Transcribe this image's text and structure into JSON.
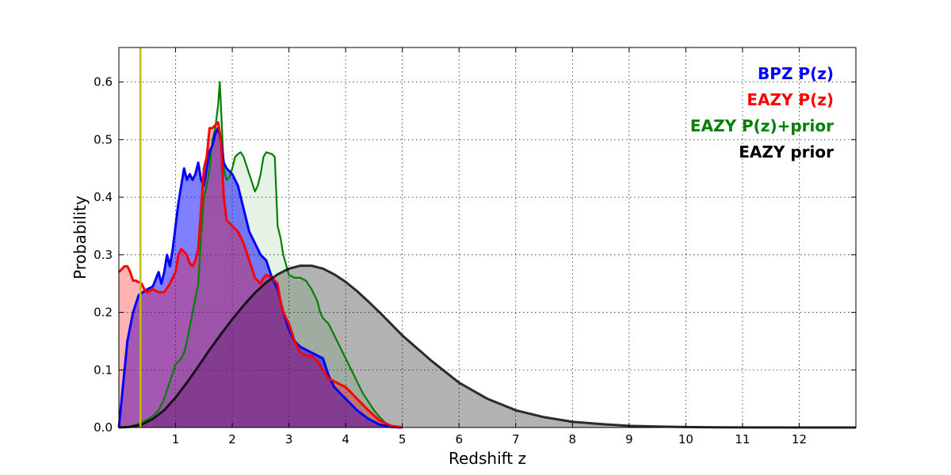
{
  "chart_data": {
    "type": "area",
    "title": "",
    "xlabel": "Redshift z",
    "ylabel": "Probability",
    "xlim": [
      0,
      13
    ],
    "ylim": [
      0,
      0.66
    ],
    "grid": true,
    "legend_position": "top-right",
    "x_ticks": [
      1,
      2,
      3,
      4,
      5,
      6,
      7,
      8,
      9,
      10,
      11,
      12
    ],
    "x_tick_labels": [
      "1",
      "2",
      "3",
      "4",
      "5",
      "6",
      "7",
      "8",
      "9",
      "10",
      "11",
      "12"
    ],
    "y_ticks": [
      0.0,
      0.1,
      0.2,
      0.3,
      0.4,
      0.5,
      0.6
    ],
    "y_tick_labels": [
      "0.0",
      "0.1",
      "0.2",
      "0.3",
      "0.4",
      "0.5",
      "0.6"
    ],
    "vline": {
      "x": 0.38,
      "color": "#bfbf00"
    },
    "series": [
      {
        "name": "BPZ P(z)",
        "color": "#0000ff",
        "fill": "#0000ff",
        "fill_opacity": 0.5,
        "line_width": 3,
        "points": [
          [
            0,
            0
          ],
          [
            0.05,
            0.05
          ],
          [
            0.15,
            0.15
          ],
          [
            0.25,
            0.2
          ],
          [
            0.35,
            0.23
          ],
          [
            0.5,
            0.24
          ],
          [
            0.6,
            0.245
          ],
          [
            0.7,
            0.27
          ],
          [
            0.75,
            0.25
          ],
          [
            0.8,
            0.27
          ],
          [
            0.85,
            0.3
          ],
          [
            0.9,
            0.28
          ],
          [
            0.95,
            0.31
          ],
          [
            1.0,
            0.35
          ],
          [
            1.05,
            0.39
          ],
          [
            1.1,
            0.42
          ],
          [
            1.15,
            0.45
          ],
          [
            1.2,
            0.43
          ],
          [
            1.25,
            0.44
          ],
          [
            1.3,
            0.43
          ],
          [
            1.35,
            0.44
          ],
          [
            1.4,
            0.46
          ],
          [
            1.45,
            0.43
          ],
          [
            1.5,
            0.42
          ],
          [
            1.55,
            0.45
          ],
          [
            1.6,
            0.48
          ],
          [
            1.65,
            0.49
          ],
          [
            1.7,
            0.51
          ],
          [
            1.75,
            0.52
          ],
          [
            1.8,
            0.5
          ],
          [
            1.85,
            0.46
          ],
          [
            1.9,
            0.45
          ],
          [
            2.0,
            0.44
          ],
          [
            2.1,
            0.42
          ],
          [
            2.2,
            0.38
          ],
          [
            2.3,
            0.34
          ],
          [
            2.4,
            0.32
          ],
          [
            2.5,
            0.3
          ],
          [
            2.6,
            0.29
          ],
          [
            2.7,
            0.26
          ],
          [
            2.8,
            0.24
          ],
          [
            2.9,
            0.2
          ],
          [
            3.0,
            0.17
          ],
          [
            3.1,
            0.15
          ],
          [
            3.2,
            0.14
          ],
          [
            3.3,
            0.135
          ],
          [
            3.4,
            0.13
          ],
          [
            3.5,
            0.125
          ],
          [
            3.6,
            0.12
          ],
          [
            3.7,
            0.09
          ],
          [
            3.8,
            0.07
          ],
          [
            4.0,
            0.05
          ],
          [
            4.2,
            0.03
          ],
          [
            4.4,
            0.015
          ],
          [
            4.6,
            0.005
          ],
          [
            4.8,
            0.001
          ],
          [
            5.0,
            0
          ]
        ]
      },
      {
        "name": "EAZY P(z)",
        "color": "#ff0000",
        "fill": "#ff0000",
        "fill_opacity": 0.3,
        "line_width": 3,
        "points": [
          [
            0,
            0.27
          ],
          [
            0.1,
            0.28
          ],
          [
            0.15,
            0.28
          ],
          [
            0.2,
            0.27
          ],
          [
            0.25,
            0.255
          ],
          [
            0.3,
            0.255
          ],
          [
            0.4,
            0.25
          ],
          [
            0.45,
            0.24
          ],
          [
            0.5,
            0.235
          ],
          [
            0.6,
            0.24
          ],
          [
            0.7,
            0.235
          ],
          [
            0.8,
            0.235
          ],
          [
            0.9,
            0.25
          ],
          [
            1.0,
            0.27
          ],
          [
            1.05,
            0.3
          ],
          [
            1.1,
            0.31
          ],
          [
            1.15,
            0.305
          ],
          [
            1.2,
            0.3
          ],
          [
            1.25,
            0.285
          ],
          [
            1.3,
            0.28
          ],
          [
            1.35,
            0.29
          ],
          [
            1.4,
            0.31
          ],
          [
            1.45,
            0.38
          ],
          [
            1.5,
            0.45
          ],
          [
            1.55,
            0.47
          ],
          [
            1.6,
            0.52
          ],
          [
            1.65,
            0.52
          ],
          [
            1.7,
            0.525
          ],
          [
            1.75,
            0.53
          ],
          [
            1.8,
            0.5
          ],
          [
            1.85,
            0.4
          ],
          [
            1.9,
            0.36
          ],
          [
            2.0,
            0.35
          ],
          [
            2.1,
            0.34
          ],
          [
            2.2,
            0.32
          ],
          [
            2.3,
            0.29
          ],
          [
            2.4,
            0.26
          ],
          [
            2.5,
            0.25
          ],
          [
            2.55,
            0.26
          ],
          [
            2.6,
            0.265
          ],
          [
            2.7,
            0.26
          ],
          [
            2.8,
            0.25
          ],
          [
            2.85,
            0.22
          ],
          [
            2.9,
            0.2
          ],
          [
            3.0,
            0.18
          ],
          [
            3.1,
            0.15
          ],
          [
            3.2,
            0.13
          ],
          [
            3.3,
            0.125
          ],
          [
            3.4,
            0.125
          ],
          [
            3.5,
            0.115
          ],
          [
            3.6,
            0.1
          ],
          [
            3.7,
            0.085
          ],
          [
            3.8,
            0.08
          ],
          [
            3.9,
            0.075
          ],
          [
            4.0,
            0.07
          ],
          [
            4.1,
            0.06
          ],
          [
            4.2,
            0.05
          ],
          [
            4.4,
            0.03
          ],
          [
            4.6,
            0.012
          ],
          [
            4.8,
            0.003
          ],
          [
            5.0,
            0
          ]
        ]
      },
      {
        "name": "EAZY P(z)+prior",
        "color": "#008000",
        "fill": "#008000",
        "fill_opacity": 0.1,
        "line_width": 2.2,
        "points": [
          [
            0,
            0
          ],
          [
            0.2,
            0.002
          ],
          [
            0.4,
            0.008
          ],
          [
            0.6,
            0.02
          ],
          [
            0.7,
            0.03
          ],
          [
            0.8,
            0.05
          ],
          [
            0.9,
            0.08
          ],
          [
            1.0,
            0.11
          ],
          [
            1.05,
            0.115
          ],
          [
            1.1,
            0.12
          ],
          [
            1.15,
            0.13
          ],
          [
            1.2,
            0.15
          ],
          [
            1.3,
            0.2
          ],
          [
            1.4,
            0.25
          ],
          [
            1.45,
            0.33
          ],
          [
            1.5,
            0.4
          ],
          [
            1.55,
            0.42
          ],
          [
            1.6,
            0.45
          ],
          [
            1.65,
            0.5
          ],
          [
            1.7,
            0.52
          ],
          [
            1.75,
            0.56
          ],
          [
            1.78,
            0.6
          ],
          [
            1.8,
            0.56
          ],
          [
            1.85,
            0.45
          ],
          [
            1.9,
            0.43
          ],
          [
            1.95,
            0.435
          ],
          [
            2.0,
            0.45
          ],
          [
            2.05,
            0.47
          ],
          [
            2.1,
            0.475
          ],
          [
            2.15,
            0.478
          ],
          [
            2.2,
            0.47
          ],
          [
            2.25,
            0.455
          ],
          [
            2.3,
            0.44
          ],
          [
            2.35,
            0.425
          ],
          [
            2.4,
            0.41
          ],
          [
            2.45,
            0.42
          ],
          [
            2.5,
            0.44
          ],
          [
            2.55,
            0.47
          ],
          [
            2.6,
            0.478
          ],
          [
            2.7,
            0.475
          ],
          [
            2.75,
            0.47
          ],
          [
            2.8,
            0.35
          ],
          [
            2.85,
            0.33
          ],
          [
            2.9,
            0.3
          ],
          [
            3.0,
            0.265
          ],
          [
            3.1,
            0.26
          ],
          [
            3.2,
            0.26
          ],
          [
            3.3,
            0.255
          ],
          [
            3.4,
            0.24
          ],
          [
            3.5,
            0.22
          ],
          [
            3.55,
            0.2
          ],
          [
            3.6,
            0.19
          ],
          [
            3.7,
            0.18
          ],
          [
            3.8,
            0.16
          ],
          [
            3.9,
            0.14
          ],
          [
            4.0,
            0.12
          ],
          [
            4.1,
            0.1
          ],
          [
            4.2,
            0.08
          ],
          [
            4.3,
            0.06
          ],
          [
            4.4,
            0.045
          ],
          [
            4.5,
            0.03
          ],
          [
            4.6,
            0.018
          ],
          [
            4.7,
            0.008
          ],
          [
            4.8,
            0.002
          ],
          [
            5.0,
            0
          ]
        ]
      },
      {
        "name": "EAZY prior",
        "color": "#000000",
        "fill": "#000000",
        "fill_opacity": 0.3,
        "line_width": 3,
        "points": [
          [
            0,
            0
          ],
          [
            0.2,
            0.001
          ],
          [
            0.4,
            0.005
          ],
          [
            0.6,
            0.015
          ],
          [
            0.8,
            0.03
          ],
          [
            1.0,
            0.052
          ],
          [
            1.2,
            0.078
          ],
          [
            1.4,
            0.106
          ],
          [
            1.6,
            0.135
          ],
          [
            1.8,
            0.162
          ],
          [
            2.0,
            0.188
          ],
          [
            2.2,
            0.212
          ],
          [
            2.4,
            0.234
          ],
          [
            2.6,
            0.252
          ],
          [
            2.8,
            0.266
          ],
          [
            3.0,
            0.276
          ],
          [
            3.2,
            0.281
          ],
          [
            3.4,
            0.281
          ],
          [
            3.6,
            0.276
          ],
          [
            3.8,
            0.266
          ],
          [
            4.0,
            0.253
          ],
          [
            4.2,
            0.237
          ],
          [
            4.4,
            0.219
          ],
          [
            4.6,
            0.2
          ],
          [
            4.8,
            0.18
          ],
          [
            5.0,
            0.16
          ],
          [
            5.5,
            0.117
          ],
          [
            6.0,
            0.078
          ],
          [
            6.5,
            0.05
          ],
          [
            7.0,
            0.03
          ],
          [
            7.5,
            0.018
          ],
          [
            8.0,
            0.01
          ],
          [
            8.5,
            0.006
          ],
          [
            9.0,
            0.003
          ],
          [
            9.5,
            0.0017
          ],
          [
            10.0,
            0.0009
          ],
          [
            10.5,
            0.0004
          ],
          [
            11.0,
            0.0002
          ],
          [
            12.0,
            5e-05
          ],
          [
            13.0,
            0
          ]
        ]
      }
    ]
  }
}
